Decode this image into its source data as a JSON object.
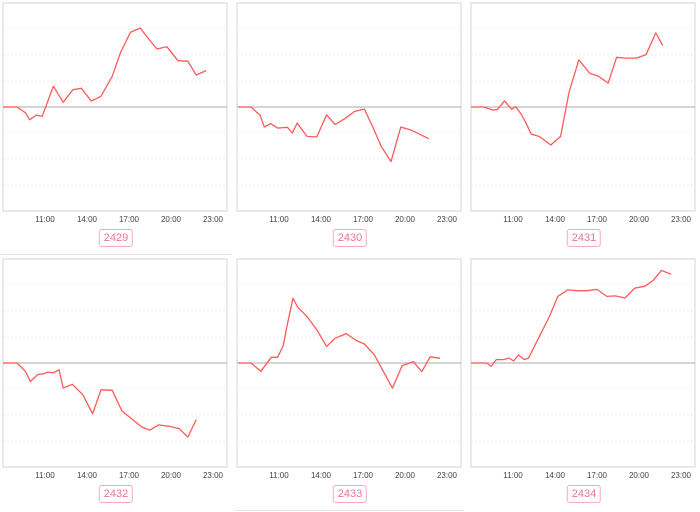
{
  "style": {
    "line_color": "#ff5a5a",
    "grid_color": "#eeeeee",
    "baseline_color": "#bbbbbb",
    "badge_color": "#f0719a"
  },
  "chart_data": [
    {
      "type": "line",
      "label": "2429",
      "x_ticks": [
        "11:00",
        "14:00",
        "17:00",
        "20:00",
        "23:00"
      ],
      "xlim": [
        8,
        24
      ],
      "ylim": [
        -4,
        4
      ],
      "grid": true,
      "x": [
        8.0,
        9.0,
        9.6,
        9.9,
        10.4,
        10.8,
        11.6,
        12.3,
        13.0,
        13.6,
        14.3,
        15.0,
        15.8,
        16.4,
        17.1,
        17.8,
        18.4,
        19.0,
        19.7,
        20.5,
        21.2,
        21.8,
        22.5
      ],
      "y": [
        0,
        0,
        -0.22,
        -0.49,
        -0.31,
        -0.36,
        0.8,
        0.18,
        0.67,
        0.72,
        0.23,
        0.41,
        1.18,
        2.1,
        2.87,
        3.04,
        2.62,
        2.23,
        2.32,
        1.78,
        1.76,
        1.23,
        1.4
      ]
    },
    {
      "type": "line",
      "label": "2430",
      "x_ticks": [
        "11:00",
        "14:00",
        "17:00",
        "20:00",
        "23:00"
      ],
      "xlim": [
        8,
        24
      ],
      "ylim": [
        -4,
        4
      ],
      "grid": true,
      "x": [
        8.1,
        9.0,
        9.65,
        9.95,
        10.4,
        10.9,
        11.6,
        11.95,
        12.3,
        13.0,
        13.7,
        14.4,
        15.0,
        15.7,
        16.4,
        17.1,
        17.7,
        18.3,
        19.0,
        19.7,
        20.5,
        21.7
      ],
      "y": [
        0,
        0,
        -0.32,
        -0.77,
        -0.64,
        -0.81,
        -0.78,
        -1.0,
        -0.62,
        -1.13,
        -1.15,
        -0.3,
        -0.67,
        -0.45,
        -0.17,
        -0.08,
        -0.77,
        -1.51,
        -2.1,
        -0.77,
        -0.9,
        -1.22
      ]
    },
    {
      "type": "line",
      "label": "2431",
      "x_ticks": [
        "11:00",
        "14:00",
        "17:00",
        "20:00",
        "23:00"
      ],
      "xlim": [
        8,
        24
      ],
      "ylim": [
        -4,
        4
      ],
      "grid": true,
      "x": [
        8.0,
        8.9,
        9.6,
        9.9,
        10.4,
        10.9,
        11.2,
        11.6,
        11.9,
        12.3,
        12.9,
        13.7,
        14.4,
        15.0,
        15.7,
        16.5,
        17.1,
        17.8,
        18.4,
        19.0,
        19.8,
        20.5,
        21.2,
        21.7
      ],
      "y": [
        0,
        0,
        -0.12,
        -0.09,
        0.24,
        -0.09,
        0.01,
        -0.29,
        -0.59,
        -1.04,
        -1.14,
        -1.46,
        -1.13,
        0.56,
        1.81,
        1.29,
        1.19,
        0.92,
        1.91,
        1.88,
        1.88,
        2.01,
        2.85,
        2.36
      ]
    },
    {
      "type": "line",
      "label": "2432",
      "x_ticks": [
        "11:00",
        "14:00",
        "17:00",
        "20:00",
        "23:00"
      ],
      "xlim": [
        8,
        24
      ],
      "ylim": [
        -4,
        4
      ],
      "grid": true,
      "x": [
        8.0,
        9.0,
        9.6,
        9.95,
        10.5,
        10.9,
        11.2,
        11.6,
        12.0,
        12.3,
        12.95,
        13.7,
        14.4,
        15.0,
        15.8,
        16.5,
        17.2,
        17.9,
        18.5,
        19.1,
        19.9,
        20.6,
        21.2,
        21.8
      ],
      "y": [
        0,
        0,
        -0.32,
        -0.71,
        -0.44,
        -0.42,
        -0.35,
        -0.38,
        -0.26,
        -0.96,
        -0.82,
        -1.22,
        -1.95,
        -1.03,
        -1.05,
        -1.85,
        -2.15,
        -2.46,
        -2.58,
        -2.38,
        -2.44,
        -2.53,
        -2.85,
        -2.18
      ]
    },
    {
      "type": "line",
      "label": "2433",
      "x_ticks": [
        "11:00",
        "14:00",
        "17:00",
        "20:00",
        "23:00"
      ],
      "xlim": [
        8,
        24
      ],
      "ylim": [
        -4,
        4
      ],
      "grid": true,
      "x": [
        8.1,
        9.0,
        9.7,
        10.45,
        10.9,
        11.3,
        11.6,
        12.0,
        12.35,
        13.0,
        13.7,
        14.4,
        15.0,
        15.8,
        16.5,
        17.1,
        17.8,
        18.4,
        19.1,
        19.8,
        20.6,
        21.2,
        21.8,
        22.5
      ],
      "y": [
        0,
        0,
        -0.32,
        0.22,
        0.22,
        0.67,
        1.5,
        2.49,
        2.14,
        1.79,
        1.28,
        0.63,
        0.95,
        1.13,
        0.87,
        0.73,
        0.32,
        -0.27,
        -0.97,
        -0.1,
        0.05,
        -0.33,
        0.24,
        0.18
      ]
    },
    {
      "type": "line",
      "label": "2434",
      "x_ticks": [
        "11:00",
        "14:00",
        "17:00",
        "20:00",
        "23:00"
      ],
      "xlim": [
        8,
        24
      ],
      "ylim": [
        -4,
        4
      ],
      "grid": true,
      "x": [
        8.0,
        9.1,
        9.45,
        9.8,
        10.3,
        10.7,
        11.05,
        11.4,
        11.8,
        12.1,
        12.9,
        13.6,
        14.2,
        14.9,
        15.6,
        16.3,
        17.0,
        17.7,
        18.3,
        19.0,
        19.7,
        20.4,
        21.0,
        21.6,
        22.3
      ],
      "y": [
        0,
        0,
        -0.13,
        0.13,
        0.13,
        0.19,
        0.08,
        0.31,
        0.13,
        0.18,
        1.03,
        1.79,
        2.56,
        2.81,
        2.78,
        2.78,
        2.83,
        2.56,
        2.58,
        2.5,
        2.88,
        2.95,
        3.17,
        3.56,
        3.41
      ]
    }
  ]
}
